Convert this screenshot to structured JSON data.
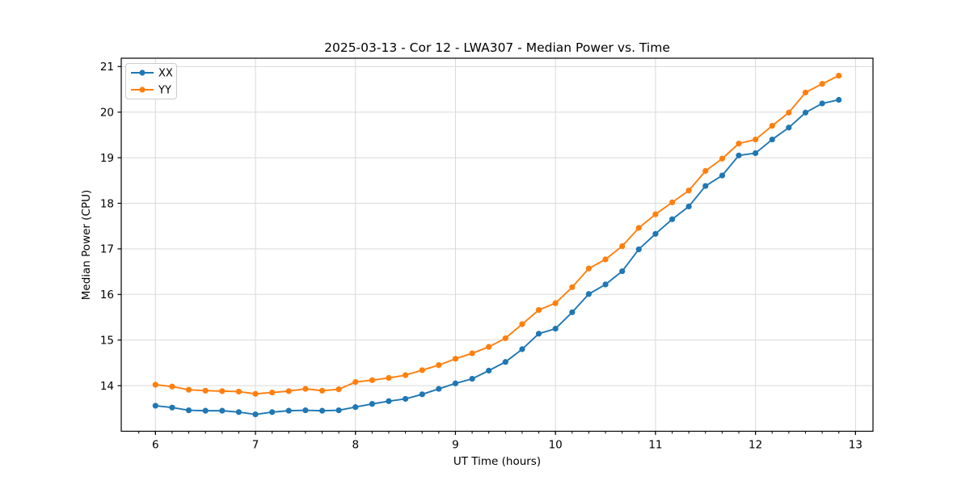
{
  "chart_data": {
    "type": "line",
    "title": "2025-03-13 - Cor 12 - LWA307 - Median Power vs. Time",
    "xlabel": "UT Time (hours)",
    "ylabel": "Median Power (CPU)",
    "x": [
      6.0,
      6.167,
      6.333,
      6.5,
      6.667,
      6.833,
      7.0,
      7.167,
      7.333,
      7.5,
      7.667,
      7.833,
      8.0,
      8.167,
      8.333,
      8.5,
      8.667,
      8.833,
      9.0,
      9.167,
      9.333,
      9.5,
      9.667,
      9.833,
      10.0,
      10.167,
      10.333,
      10.5,
      10.667,
      10.833,
      11.0,
      11.167,
      11.333,
      11.5,
      11.667,
      11.833,
      12.0,
      12.167,
      12.333,
      12.5,
      12.667,
      12.833
    ],
    "series": [
      {
        "name": "XX",
        "color": "#1f77b4",
        "values": [
          13.56,
          13.52,
          13.46,
          13.45,
          13.45,
          13.42,
          13.37,
          13.42,
          13.45,
          13.46,
          13.45,
          13.46,
          13.53,
          13.6,
          13.66,
          13.71,
          13.81,
          13.93,
          14.05,
          14.15,
          14.33,
          14.52,
          14.8,
          15.14,
          15.25,
          15.61,
          16.01,
          16.22,
          16.51,
          16.99,
          17.33,
          17.65,
          17.93,
          18.38,
          18.61,
          19.05,
          19.1,
          19.4,
          19.66,
          19.99,
          20.19,
          20.27
        ]
      },
      {
        "name": "YY",
        "color": "#ff7f0e",
        "values": [
          14.02,
          13.98,
          13.91,
          13.89,
          13.88,
          13.87,
          13.82,
          13.85,
          13.88,
          13.93,
          13.89,
          13.92,
          14.08,
          14.12,
          14.17,
          14.23,
          14.34,
          14.45,
          14.59,
          14.71,
          14.85,
          15.04,
          15.35,
          15.66,
          15.81,
          16.16,
          16.57,
          16.77,
          17.06,
          17.46,
          17.76,
          18.02,
          18.28,
          18.71,
          18.98,
          19.31,
          19.4,
          19.7,
          19.99,
          20.43,
          20.62,
          20.8
        ]
      }
    ],
    "x_ticks": [
      6,
      7,
      8,
      9,
      10,
      11,
      12,
      13
    ],
    "y_ticks": [
      14,
      15,
      16,
      17,
      18,
      19,
      20,
      21
    ],
    "x_minor_step": 0.1666667,
    "xlim": [
      5.658,
      13.175
    ],
    "ylim": [
      13.0,
      21.183
    ],
    "grid": true,
    "legend_position": "upper left",
    "colors": {
      "grid": "#d9d9d9",
      "spine": "#000000",
      "text": "#000000",
      "background": "#ffffff",
      "legend_border": "#cccccc"
    }
  }
}
